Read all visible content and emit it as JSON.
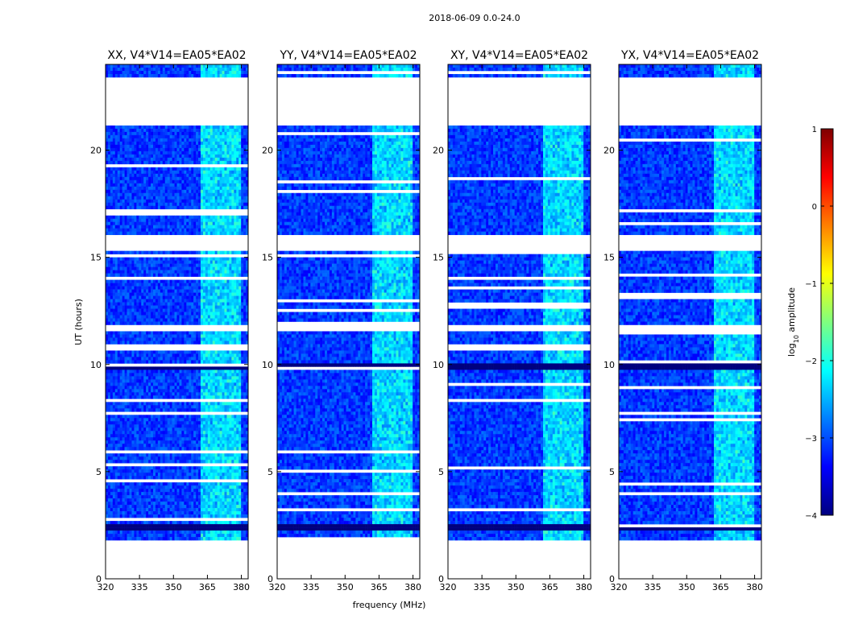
{
  "suptitle": "2018-06-09 0.0-24.0",
  "chart_data": {
    "type": "heatmap",
    "xlabel": "frequency (MHz)",
    "ylabel": "UT (hours)",
    "xlim": [
      320,
      383
    ],
    "ylim": [
      0,
      24
    ],
    "xticks": [
      "320",
      "335",
      "350",
      "365",
      "380"
    ],
    "yticks": [
      "0",
      "5",
      "10",
      "15",
      "20"
    ],
    "panels": [
      {
        "title": "XX, V4*V14=EA05*EA02"
      },
      {
        "title": "YY, V4*V14=EA05*EA02"
      },
      {
        "title": "XY, V4*V14=EA05*EA02"
      },
      {
        "title": "YX, V4*V14=EA05*EA02"
      }
    ],
    "colorbar": {
      "label": "log10 amplitude",
      "label_main": "log",
      "label_sub": "10",
      "label_rest": " amplitude",
      "range": [
        -4,
        1
      ],
      "ticks": [
        "1",
        "0",
        "−1",
        "−2",
        "−3",
        "−4"
      ],
      "colors": [
        "#00007f",
        "#0000ff",
        "#007fff",
        "#00ffff",
        "#7fff7f",
        "#ffff00",
        "#ff7f00",
        "#ff0000",
        "#7f0000"
      ]
    },
    "data_gaps_hours": [
      [
        0,
        1.8
      ],
      [
        21.1,
        23.4
      ],
      [
        15.3,
        16.1
      ],
      [
        11.9,
        11.6
      ]
    ],
    "zero_bands_hours": [
      [
        9.7,
        10.05
      ],
      [
        2.3,
        2.55
      ]
    ],
    "rfi_band_mhz": [
      362,
      380
    ]
  }
}
